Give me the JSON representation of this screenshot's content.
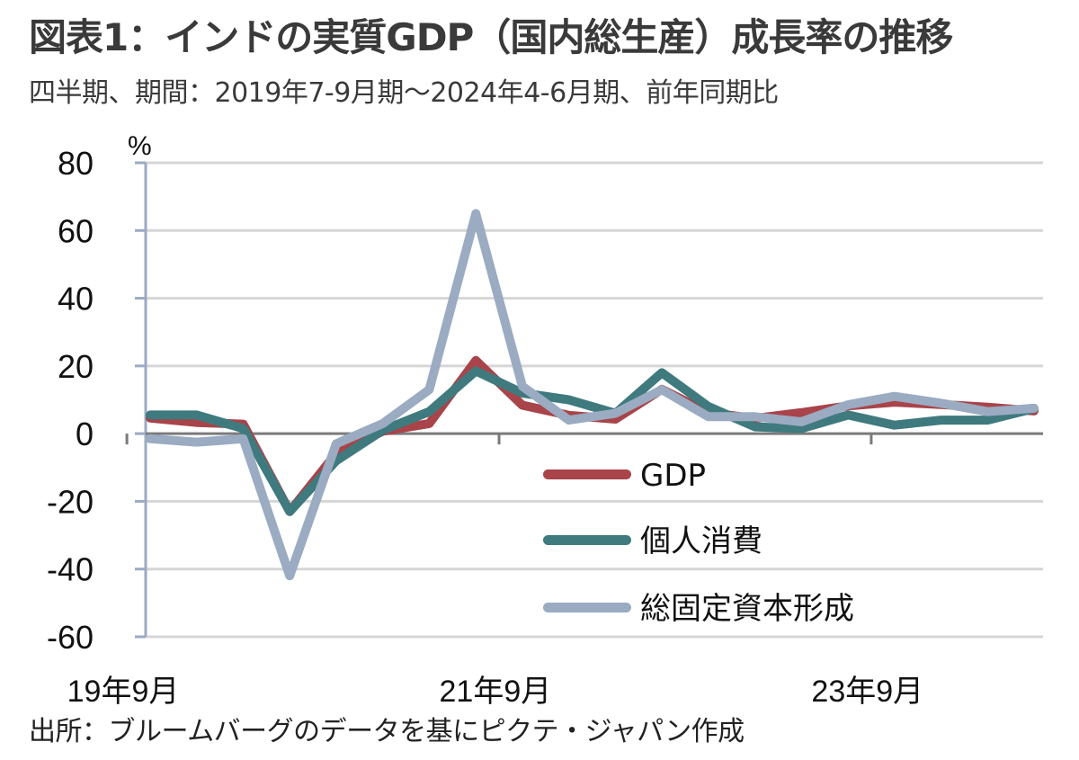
{
  "title": "図表1：インドの実質GDP（国内総生産）成長率の推移",
  "subtitle": "四半期、期間：2019年7-9月期～2024年4-6月期、前年同期比",
  "source": "出所：ブルームバーグのデータを基にピクテ・ジャパン作成",
  "chart_data": {
    "type": "line",
    "title": "図表1：インドの実質GDP（国内総生産）成長率の推移",
    "ylabel": "%",
    "xlabel": "",
    "ylim": [
      -60,
      80
    ],
    "yticks": [
      80,
      60,
      40,
      20,
      0,
      -20,
      -40,
      -60
    ],
    "ytick_labels": [
      "80",
      "60",
      "40",
      "20",
      "0",
      "-20",
      "-40",
      "-60"
    ],
    "grid": true,
    "legend_position": "lower-right",
    "x": [
      "2019Q3",
      "2019Q4",
      "2020Q1",
      "2020Q2",
      "2020Q3",
      "2020Q4",
      "2021Q1",
      "2021Q2",
      "2021Q3",
      "2021Q4",
      "2022Q1",
      "2022Q2",
      "2022Q3",
      "2022Q4",
      "2023Q1",
      "2023Q2",
      "2023Q3",
      "2023Q4",
      "2024Q1",
      "2024Q2"
    ],
    "xtick_labels": [
      {
        "index": 0,
        "label": "19年9月"
      },
      {
        "index": 8,
        "label": "21年9月"
      },
      {
        "index": 16,
        "label": "23年9月"
      }
    ],
    "series": [
      {
        "name": "GDP",
        "color": "#a8444a",
        "values": [
          4.6,
          3.3,
          2.8,
          -23.0,
          -5.8,
          0.7,
          3.0,
          21.6,
          8.4,
          5.4,
          4.3,
          13.1,
          6.2,
          4.5,
          6.2,
          8.2,
          9.3,
          8.6,
          7.8,
          6.7
        ]
      },
      {
        "name": "個人消費",
        "color": "#3f7a7e",
        "values": [
          5.5,
          5.5,
          1.5,
          -23.0,
          -8.0,
          1.0,
          6.5,
          18.5,
          12.0,
          10.0,
          6.0,
          18.0,
          8.0,
          2.0,
          1.5,
          5.5,
          2.5,
          4.0,
          4.0,
          7.4
        ]
      },
      {
        "name": "総固定資本形成",
        "color": "#9aabc2",
        "values": [
          -1.5,
          -2.5,
          -1.5,
          -42.0,
          -3.0,
          3.0,
          13.0,
          65.0,
          14.0,
          4.0,
          6.0,
          13.0,
          5.0,
          5.0,
          3.5,
          8.5,
          11.0,
          9.0,
          6.5,
          7.5
        ]
      }
    ]
  }
}
